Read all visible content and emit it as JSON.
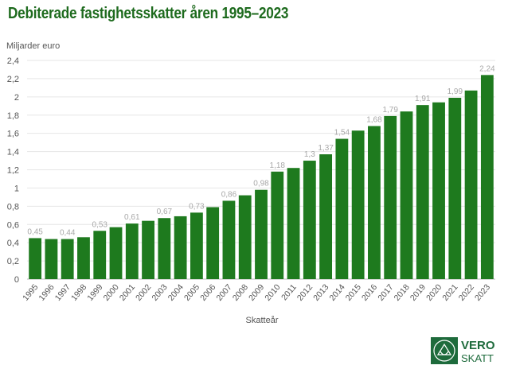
{
  "chart_data": {
    "type": "bar",
    "title": "Debiterade fastighetsskatter åren 1995–2023",
    "ylabel": "Miljarder euro",
    "xlabel": "Skatteår",
    "ylim": [
      0,
      2.4
    ],
    "yticks": [
      "0",
      "0,2",
      "0,4",
      "0,6",
      "0,8",
      "1",
      "1,2",
      "1,4",
      "1,6",
      "1,8",
      "2",
      "2,2",
      "2,4"
    ],
    "grid": true,
    "categories": [
      "1995",
      "1996",
      "1997",
      "1998",
      "1999",
      "2000",
      "2001",
      "2002",
      "2003",
      "2004",
      "2005",
      "2006",
      "2007",
      "2008",
      "2009",
      "2010",
      "2011",
      "2012",
      "2013",
      "2014",
      "2015",
      "2016",
      "2017",
      "2018",
      "2019",
      "2020",
      "2021",
      "2022",
      "2023"
    ],
    "values": [
      0.45,
      0.44,
      0.44,
      0.46,
      0.53,
      0.57,
      0.61,
      0.64,
      0.67,
      0.69,
      0.73,
      0.79,
      0.86,
      0.92,
      0.98,
      1.18,
      1.22,
      1.3,
      1.37,
      1.54,
      1.63,
      1.68,
      1.79,
      1.84,
      1.91,
      1.94,
      1.99,
      2.07,
      2.24
    ],
    "data_labels": [
      "0,45",
      "",
      "0,44",
      "",
      "0,53",
      "",
      "0,61",
      "",
      "0,67",
      "",
      "0,73",
      "",
      "0,86",
      "",
      "0,98",
      "1,18",
      "",
      "1,3",
      "1,37",
      "1,54",
      "",
      "1,68",
      "1,79",
      "",
      "1,91",
      "",
      "1,99",
      "",
      "2,24"
    ],
    "bar_color": "#1e7a1e",
    "label_color": "#a8a8a8"
  },
  "logo": {
    "line1": "VERO",
    "line2": "SKATT"
  }
}
